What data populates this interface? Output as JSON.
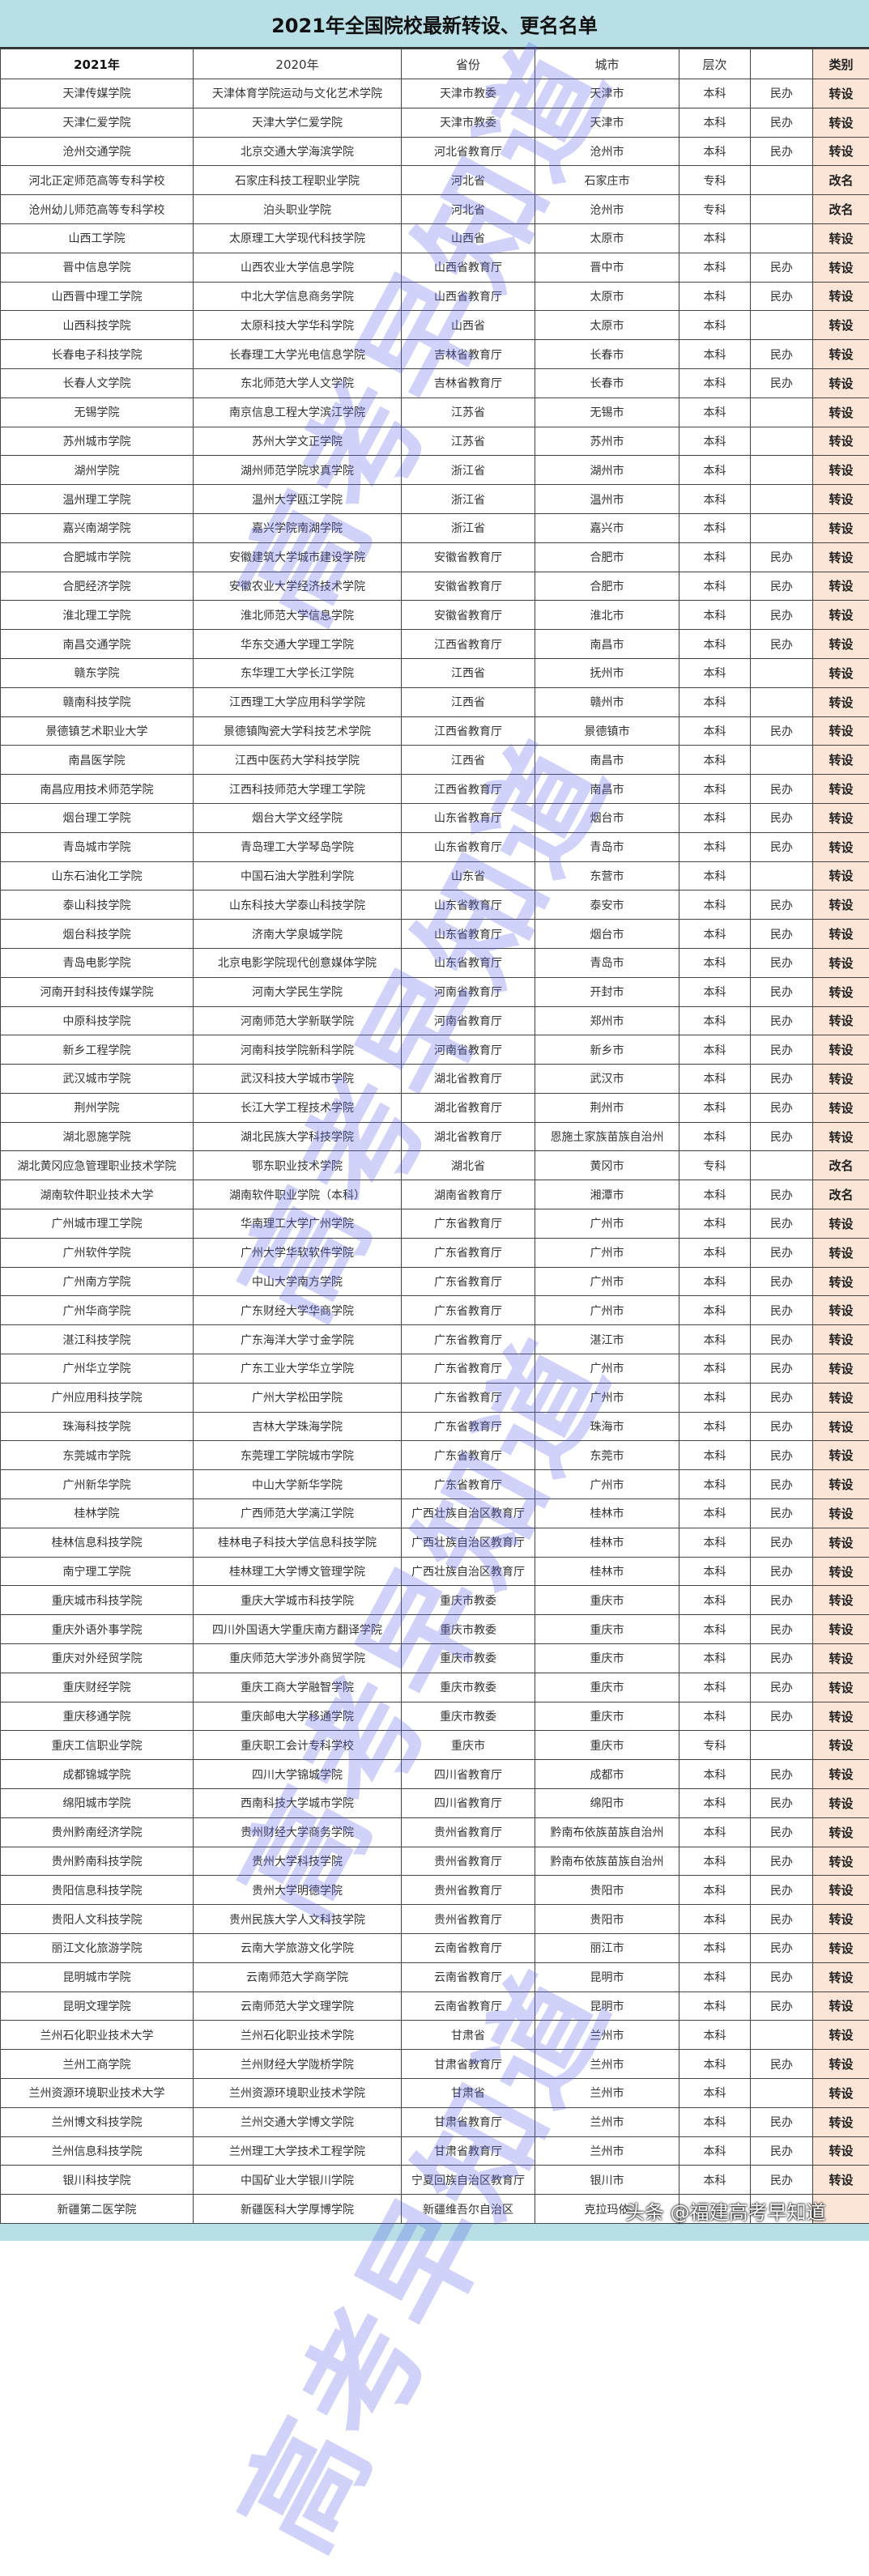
{
  "title": "2021年全国院校最新转设、更名名单",
  "headers": [
    "2021年",
    "2020年",
    "省份",
    "城市",
    "层次",
    "",
    "类别"
  ],
  "rows": [
    [
      "天津传媒学院",
      "天津体育学院运动与文化艺术学院",
      "天津市教委",
      "天津市",
      "本科",
      "民办",
      "转设"
    ],
    [
      "天津仁爱学院",
      "天津大学仁爱学院",
      "天津市教委",
      "天津市",
      "本科",
      "民办",
      "转设"
    ],
    [
      "沧州交通学院",
      "北京交通大学海滨学院",
      "河北省教育厅",
      "沧州市",
      "本科",
      "民办",
      "转设"
    ],
    [
      "河北正定师范高等专科学校",
      "石家庄科技工程职业学院",
      "河北省",
      "石家庄市",
      "专科",
      "",
      "改名"
    ],
    [
      "沧州幼儿师范高等专科学校",
      "泊头职业学院",
      "河北省",
      "沧州市",
      "专科",
      "",
      "改名"
    ],
    [
      "山西工学院",
      "太原理工大学现代科技学院",
      "山西省",
      "太原市",
      "本科",
      "",
      "转设"
    ],
    [
      "晋中信息学院",
      "山西农业大学信息学院",
      "山西省教育厅",
      "晋中市",
      "本科",
      "民办",
      "转设"
    ],
    [
      "山西晋中理工学院",
      "中北大学信息商务学院",
      "山西省教育厅",
      "太原市",
      "本科",
      "民办",
      "转设"
    ],
    [
      "山西科技学院",
      "太原科技大学华科学院",
      "山西省",
      "太原市",
      "本科",
      "",
      "转设"
    ],
    [
      "长春电子科技学院",
      "长春理工大学光电信息学院",
      "吉林省教育厅",
      "长春市",
      "本科",
      "民办",
      "转设"
    ],
    [
      "长春人文学院",
      "东北师范大学人文学院",
      "吉林省教育厅",
      "长春市",
      "本科",
      "民办",
      "转设"
    ],
    [
      "无锡学院",
      "南京信息工程大学滨江学院",
      "江苏省",
      "无锡市",
      "本科",
      "",
      "转设"
    ],
    [
      "苏州城市学院",
      "苏州大学文正学院",
      "江苏省",
      "苏州市",
      "本科",
      "",
      "转设"
    ],
    [
      "湖州学院",
      "湖州师范学院求真学院",
      "浙江省",
      "湖州市",
      "本科",
      "",
      "转设"
    ],
    [
      "温州理工学院",
      "温州大学瓯江学院",
      "浙江省",
      "温州市",
      "本科",
      "",
      "转设"
    ],
    [
      "嘉兴南湖学院",
      "嘉兴学院南湖学院",
      "浙江省",
      "嘉兴市",
      "本科",
      "",
      "转设"
    ],
    [
      "合肥城市学院",
      "安徽建筑大学城市建设学院",
      "安徽省教育厅",
      "合肥市",
      "本科",
      "民办",
      "转设"
    ],
    [
      "合肥经济学院",
      "安徽农业大学经济技术学院",
      "安徽省教育厅",
      "合肥市",
      "本科",
      "民办",
      "转设"
    ],
    [
      "淮北理工学院",
      "淮北师范大学信息学院",
      "安徽省教育厅",
      "淮北市",
      "本科",
      "民办",
      "转设"
    ],
    [
      "南昌交通学院",
      "华东交通大学理工学院",
      "江西省教育厅",
      "南昌市",
      "本科",
      "民办",
      "转设"
    ],
    [
      "赣东学院",
      "东华理工大学长江学院",
      "江西省",
      "抚州市",
      "本科",
      "",
      "转设"
    ],
    [
      "赣南科技学院",
      "江西理工大学应用科学学院",
      "江西省",
      "赣州市",
      "本科",
      "",
      "转设"
    ],
    [
      "景德镇艺术职业大学",
      "景德镇陶瓷大学科技艺术学院",
      "江西省教育厅",
      "景德镇市",
      "本科",
      "民办",
      "转设"
    ],
    [
      "南昌医学院",
      "江西中医药大学科技学院",
      "江西省",
      "南昌市",
      "本科",
      "",
      "转设"
    ],
    [
      "南昌应用技术师范学院",
      "江西科技师范大学理工学院",
      "江西省教育厅",
      "南昌市",
      "本科",
      "民办",
      "转设"
    ],
    [
      "烟台理工学院",
      "烟台大学文经学院",
      "山东省教育厅",
      "烟台市",
      "本科",
      "民办",
      "转设"
    ],
    [
      "青岛城市学院",
      "青岛理工大学琴岛学院",
      "山东省教育厅",
      "青岛市",
      "本科",
      "民办",
      "转设"
    ],
    [
      "山东石油化工学院",
      "中国石油大学胜利学院",
      "山东省",
      "东营市",
      "本科",
      "",
      "转设"
    ],
    [
      "泰山科技学院",
      "山东科技大学泰山科技学院",
      "山东省教育厅",
      "泰安市",
      "本科",
      "民办",
      "转设"
    ],
    [
      "烟台科技学院",
      "济南大学泉城学院",
      "山东省教育厅",
      "烟台市",
      "本科",
      "民办",
      "转设"
    ],
    [
      "青岛电影学院",
      "北京电影学院现代创意媒体学院",
      "山东省教育厅",
      "青岛市",
      "本科",
      "民办",
      "转设"
    ],
    [
      "河南开封科技传媒学院",
      "河南大学民生学院",
      "河南省教育厅",
      "开封市",
      "本科",
      "民办",
      "转设"
    ],
    [
      "中原科技学院",
      "河南师范大学新联学院",
      "河南省教育厅",
      "郑州市",
      "本科",
      "民办",
      "转设"
    ],
    [
      "新乡工程学院",
      "河南科技学院新科学院",
      "河南省教育厅",
      "新乡市",
      "本科",
      "民办",
      "转设"
    ],
    [
      "武汉城市学院",
      "武汉科技大学城市学院",
      "湖北省教育厅",
      "武汉市",
      "本科",
      "民办",
      "转设"
    ],
    [
      "荆州学院",
      "长江大学工程技术学院",
      "湖北省教育厅",
      "荆州市",
      "本科",
      "民办",
      "转设"
    ],
    [
      "湖北恩施学院",
      "湖北民族大学科技学院",
      "湖北省教育厅",
      "恩施土家族苗族自治州",
      "本科",
      "民办",
      "转设"
    ],
    [
      "湖北黄冈应急管理职业技术学院",
      "鄂东职业技术学院",
      "湖北省",
      "黄冈市",
      "专科",
      "",
      "改名"
    ],
    [
      "湖南软件职业技术大学",
      "湖南软件职业学院（本科）",
      "湖南省教育厅",
      "湘潭市",
      "本科",
      "民办",
      "改名"
    ],
    [
      "广州城市理工学院",
      "华南理工大学广州学院",
      "广东省教育厅",
      "广州市",
      "本科",
      "民办",
      "转设"
    ],
    [
      "广州软件学院",
      "广州大学华软软件学院",
      "广东省教育厅",
      "广州市",
      "本科",
      "民办",
      "转设"
    ],
    [
      "广州南方学院",
      "中山大学南方学院",
      "广东省教育厅",
      "广州市",
      "本科",
      "民办",
      "转设"
    ],
    [
      "广州华商学院",
      "广东财经大学华商学院",
      "广东省教育厅",
      "广州市",
      "本科",
      "民办",
      "转设"
    ],
    [
      "湛江科技学院",
      "广东海洋大学寸金学院",
      "广东省教育厅",
      "湛江市",
      "本科",
      "民办",
      "转设"
    ],
    [
      "广州华立学院",
      "广东工业大学华立学院",
      "广东省教育厅",
      "广州市",
      "本科",
      "民办",
      "转设"
    ],
    [
      "广州应用科技学院",
      "广州大学松田学院",
      "广东省教育厅",
      "广州市",
      "本科",
      "民办",
      "转设"
    ],
    [
      "珠海科技学院",
      "吉林大学珠海学院",
      "广东省教育厅",
      "珠海市",
      "本科",
      "民办",
      "转设"
    ],
    [
      "东莞城市学院",
      "东莞理工学院城市学院",
      "广东省教育厅",
      "东莞市",
      "本科",
      "民办",
      "转设"
    ],
    [
      "广州新华学院",
      "中山大学新华学院",
      "广东省教育厅",
      "广州市",
      "本科",
      "民办",
      "转设"
    ],
    [
      "桂林学院",
      "广西师范大学漓江学院",
      "广西壮族自治区教育厅",
      "桂林市",
      "本科",
      "民办",
      "转设"
    ],
    [
      "桂林信息科技学院",
      "桂林电子科技大学信息科技学院",
      "广西壮族自治区教育厅",
      "桂林市",
      "本科",
      "民办",
      "转设"
    ],
    [
      "南宁理工学院",
      "桂林理工大学博文管理学院",
      "广西壮族自治区教育厅",
      "桂林市",
      "本科",
      "民办",
      "转设"
    ],
    [
      "重庆城市科技学院",
      "重庆大学城市科技学院",
      "重庆市教委",
      "重庆市",
      "本科",
      "民办",
      "转设"
    ],
    [
      "重庆外语外事学院",
      "四川外国语大学重庆南方翻译学院",
      "重庆市教委",
      "重庆市",
      "本科",
      "民办",
      "转设"
    ],
    [
      "重庆对外经贸学院",
      "重庆师范大学涉外商贸学院",
      "重庆市教委",
      "重庆市",
      "本科",
      "民办",
      "转设"
    ],
    [
      "重庆财经学院",
      "重庆工商大学融智学院",
      "重庆市教委",
      "重庆市",
      "本科",
      "民办",
      "转设"
    ],
    [
      "重庆移通学院",
      "重庆邮电大学移通学院",
      "重庆市教委",
      "重庆市",
      "本科",
      "民办",
      "转设"
    ],
    [
      "重庆工信职业学院",
      "重庆职工会计专科学校",
      "重庆市",
      "重庆市",
      "专科",
      "",
      "转设"
    ],
    [
      "成都锦城学院",
      "四川大学锦城学院",
      "四川省教育厅",
      "成都市",
      "本科",
      "民办",
      "转设"
    ],
    [
      "绵阳城市学院",
      "西南科技大学城市学院",
      "四川省教育厅",
      "绵阳市",
      "本科",
      "民办",
      "转设"
    ],
    [
      "贵州黔南经济学院",
      "贵州财经大学商务学院",
      "贵州省教育厅",
      "黔南布依族苗族自治州",
      "本科",
      "民办",
      "转设"
    ],
    [
      "贵州黔南科技学院",
      "贵州大学科技学院",
      "贵州省教育厅",
      "黔南布依族苗族自治州",
      "本科",
      "民办",
      "转设"
    ],
    [
      "贵阳信息科技学院",
      "贵州大学明德学院",
      "贵州省教育厅",
      "贵阳市",
      "本科",
      "民办",
      "转设"
    ],
    [
      "贵阳人文科技学院",
      "贵州民族大学人文科技学院",
      "贵州省教育厅",
      "贵阳市",
      "本科",
      "民办",
      "转设"
    ],
    [
      "丽江文化旅游学院",
      "云南大学旅游文化学院",
      "云南省教育厅",
      "丽江市",
      "本科",
      "民办",
      "转设"
    ],
    [
      "昆明城市学院",
      "云南师范大学商学院",
      "云南省教育厅",
      "昆明市",
      "本科",
      "民办",
      "转设"
    ],
    [
      "昆明文理学院",
      "云南师范大学文理学院",
      "云南省教育厅",
      "昆明市",
      "本科",
      "民办",
      "转设"
    ],
    [
      "兰州石化职业技术大学",
      "兰州石化职业技术学院",
      "甘肃省",
      "兰州市",
      "本科",
      "",
      "转设"
    ],
    [
      "兰州工商学院",
      "兰州财经大学陇桥学院",
      "甘肃省教育厅",
      "兰州市",
      "本科",
      "民办",
      "转设"
    ],
    [
      "兰州资源环境职业技术大学",
      "兰州资源环境职业技术学院",
      "甘肃省",
      "兰州市",
      "本科",
      "",
      "转设"
    ],
    [
      "兰州博文科技学院",
      "兰州交通大学博文学院",
      "甘肃省教育厅",
      "兰州市",
      "本科",
      "民办",
      "转设"
    ],
    [
      "兰州信息科技学院",
      "兰州理工大学技术工程学院",
      "甘肃省教育厅",
      "兰州市",
      "本科",
      "民办",
      "转设"
    ],
    [
      "银川科技学院",
      "中国矿业大学银川学院",
      "宁夏回族自治区教育厅",
      "银川市",
      "本科",
      "民办",
      "转设"
    ],
    [
      "新疆第二医学院",
      "新疆医科大学厚博学院",
      "新疆维吾尔自治区",
      "克拉玛依",
      "",
      "",
      ""
    ]
  ],
  "watermark": "高考早知道",
  "overlay_credit": "头条 @福建高考早知道",
  "colors": {
    "title_bg": "#b8dfe6",
    "category_bg": "#fbe5d6",
    "watermark": "#5a5feb"
  }
}
